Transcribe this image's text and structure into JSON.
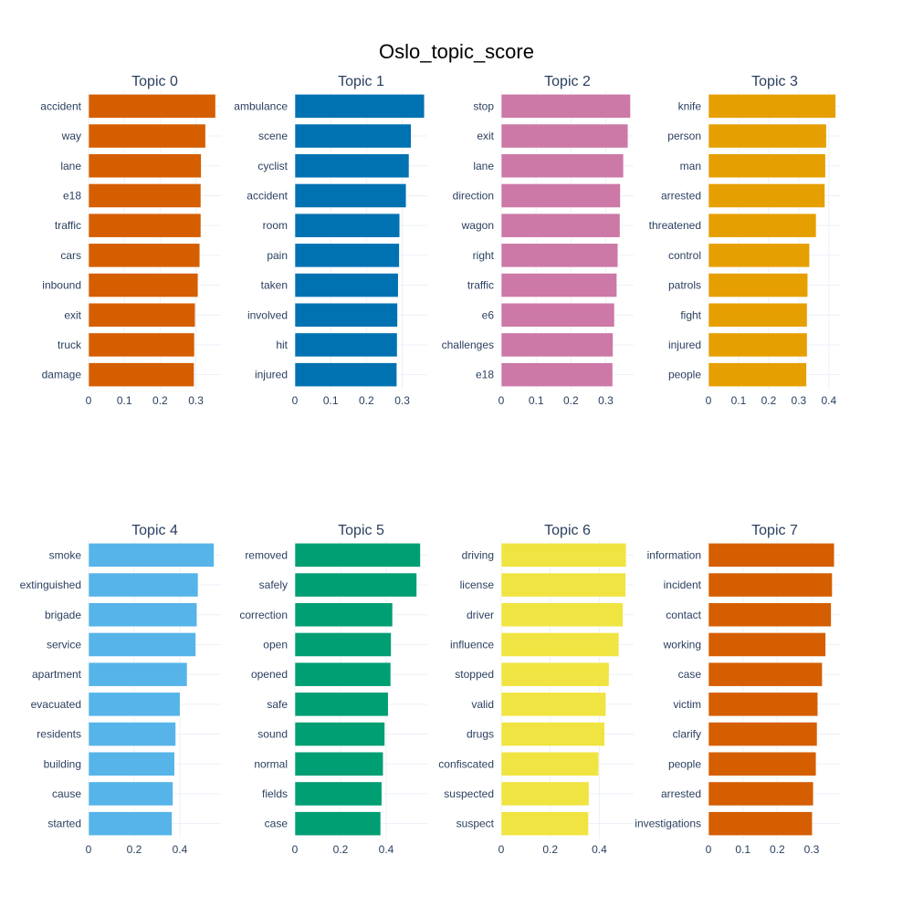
{
  "chart_data": {
    "type": "bar",
    "orientation": "horizontal",
    "title": "Oslo_topic_score",
    "grid": true,
    "subplots": [
      {
        "title": "Topic 0",
        "color": "#D55E00",
        "categories": [
          "accident",
          "way",
          "lane",
          "e18",
          "traffic",
          "cars",
          "inbound",
          "exit",
          "truck",
          "damage"
        ],
        "values": [
          0.355,
          0.327,
          0.315,
          0.314,
          0.314,
          0.311,
          0.306,
          0.298,
          0.296,
          0.295
        ],
        "xlim": [
          0,
          0.37
        ],
        "xticks": [
          "0",
          "0.1",
          "0.2",
          "0.3"
        ],
        "xtick_values": [
          0,
          0.1,
          0.2,
          0.3
        ]
      },
      {
        "title": "Topic 1",
        "color": "#0072B2",
        "categories": [
          "ambulance",
          "scene",
          "cyclist",
          "accident",
          "room",
          "pain",
          "taken",
          "involved",
          "hit",
          "injured"
        ],
        "values": [
          0.362,
          0.325,
          0.319,
          0.311,
          0.293,
          0.292,
          0.289,
          0.287,
          0.286,
          0.285
        ],
        "xlim": [
          0,
          0.37
        ],
        "xticks": [
          "0",
          "0.1",
          "0.2",
          "0.3"
        ],
        "xtick_values": [
          0,
          0.1,
          0.2,
          0.3
        ]
      },
      {
        "title": "Topic 2",
        "color": "#CC79A7",
        "categories": [
          "stop",
          "exit",
          "lane",
          "direction",
          "wagon",
          "right",
          "traffic",
          "e6",
          "challenges",
          "e18"
        ],
        "values": [
          0.371,
          0.364,
          0.351,
          0.342,
          0.341,
          0.335,
          0.332,
          0.325,
          0.321,
          0.32
        ],
        "xlim": [
          0,
          0.38
        ],
        "xticks": [
          "0",
          "0.1",
          "0.2",
          "0.3"
        ],
        "xtick_values": [
          0,
          0.1,
          0.2,
          0.3
        ]
      },
      {
        "title": "Topic 3",
        "color": "#E69F00",
        "categories": [
          "knife",
          "person",
          "man",
          "arrested",
          "threatened",
          "control",
          "patrols",
          "fight",
          "injured",
          "people"
        ],
        "values": [
          0.423,
          0.392,
          0.389,
          0.387,
          0.358,
          0.336,
          0.33,
          0.328,
          0.328,
          0.326
        ],
        "xlim": [
          0,
          0.44
        ],
        "xticks": [
          "0",
          "0.1",
          "0.2",
          "0.3",
          "0.4"
        ],
        "xtick_values": [
          0,
          0.1,
          0.2,
          0.3,
          0.4
        ]
      },
      {
        "title": "Topic 4",
        "color": "#56B4E9",
        "categories": [
          "smoke",
          "extinguished",
          "brigade",
          "service",
          "apartment",
          "evacuated",
          "residents",
          "building",
          "cause",
          "started"
        ],
        "values": [
          0.55,
          0.48,
          0.475,
          0.47,
          0.432,
          0.401,
          0.382,
          0.377,
          0.37,
          0.366
        ],
        "xlim": [
          0,
          0.58
        ],
        "xticks": [
          "0",
          "0.2",
          "0.4"
        ],
        "xtick_values": [
          0,
          0.2,
          0.4
        ]
      },
      {
        "title": "Topic 5",
        "color": "#009E73",
        "categories": [
          "removed",
          "safely",
          "correction",
          "open",
          "opened",
          "safe",
          "sound",
          "normal",
          "fields",
          "case"
        ],
        "values": [
          0.55,
          0.534,
          0.428,
          0.422,
          0.42,
          0.409,
          0.394,
          0.387,
          0.381,
          0.376
        ],
        "xlim": [
          0,
          0.58
        ],
        "xticks": [
          "0",
          "0.2",
          "0.4"
        ],
        "xtick_values": [
          0,
          0.2,
          0.4
        ]
      },
      {
        "title": "Topic 6",
        "color": "#F0E442",
        "categories": [
          "driving",
          "license",
          "driver",
          "influence",
          "stopped",
          "valid",
          "drugs",
          "confiscated",
          "suspected",
          "suspect"
        ],
        "values": [
          0.51,
          0.508,
          0.497,
          0.48,
          0.44,
          0.427,
          0.422,
          0.398,
          0.358,
          0.356
        ],
        "xlim": [
          0,
          0.54
        ],
        "xticks": [
          "0",
          "0.2",
          "0.4"
        ],
        "xtick_values": [
          0,
          0.2,
          0.4
        ]
      },
      {
        "title": "Topic 7",
        "color": "#D55E00",
        "categories": [
          "information",
          "incident",
          "contact",
          "working",
          "case",
          "victim",
          "clarify",
          "people",
          "arrested",
          "investigations"
        ],
        "values": [
          0.366,
          0.36,
          0.357,
          0.341,
          0.331,
          0.318,
          0.316,
          0.313,
          0.305,
          0.302
        ],
        "xlim": [
          0,
          0.385
        ],
        "xticks": [
          "0",
          "0.1",
          "0.2",
          "0.3"
        ],
        "xtick_values": [
          0,
          0.1,
          0.2,
          0.3
        ]
      }
    ]
  }
}
